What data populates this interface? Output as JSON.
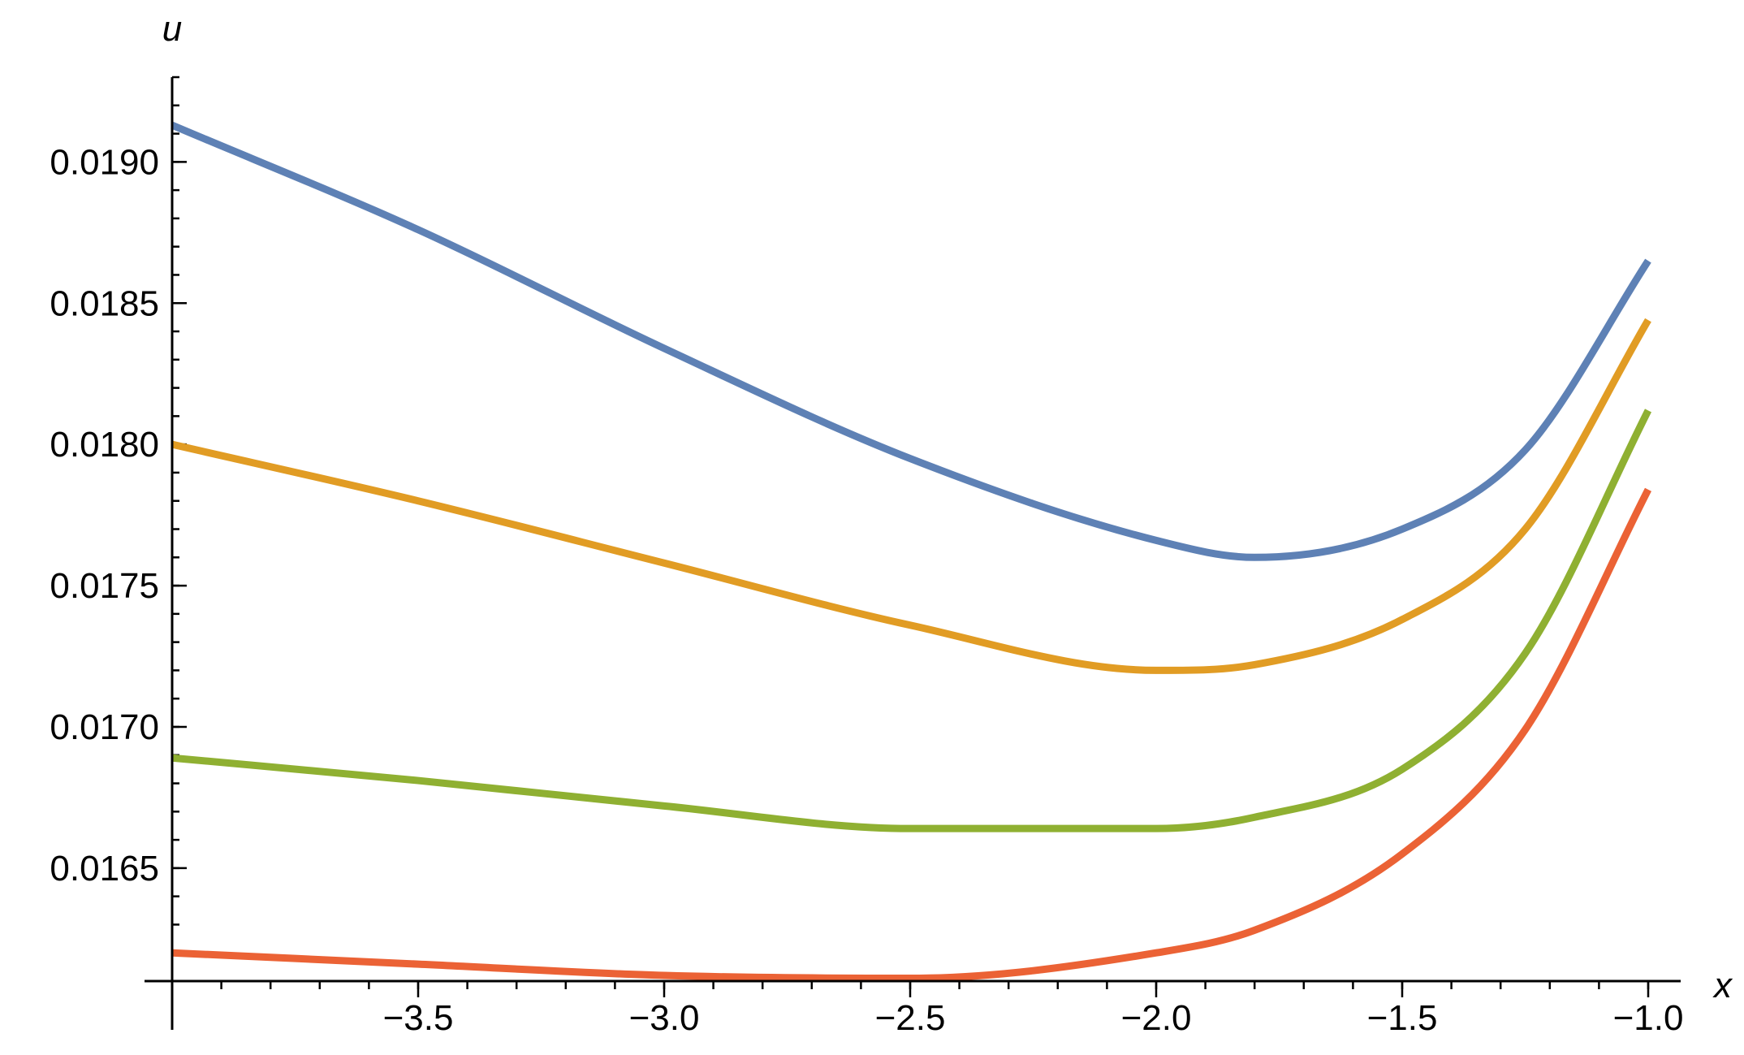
{
  "chart_data": {
    "type": "line",
    "title": "",
    "xlabel": "x",
    "ylabel": "u",
    "xlim": [
      -4.0,
      -1.0
    ],
    "ylim": [
      0.0161,
      0.0193
    ],
    "x_ticks": [
      {
        "value": -3.5,
        "label": "−3.5"
      },
      {
        "value": -3.0,
        "label": "−3.0"
      },
      {
        "value": -2.5,
        "label": "−2.5"
      },
      {
        "value": -2.0,
        "label": "−2.0"
      },
      {
        "value": -1.5,
        "label": "−1.5"
      },
      {
        "value": -1.0,
        "label": "−1.0"
      }
    ],
    "y_ticks": [
      {
        "value": 0.0165,
        "label": "0.0165"
      },
      {
        "value": 0.017,
        "label": "0.0170"
      },
      {
        "value": 0.0175,
        "label": "0.0175"
      },
      {
        "value": 0.018,
        "label": "0.0180"
      },
      {
        "value": 0.0185,
        "label": "0.0185"
      },
      {
        "value": 0.019,
        "label": "0.0190"
      }
    ],
    "grid": false,
    "legend": "none",
    "x": [
      -4.0,
      -3.5,
      -3.0,
      -2.5,
      -2.0,
      -1.8,
      -1.5,
      -1.25,
      -1.0
    ],
    "series": [
      {
        "color": "#5e81b5",
        "values": [
          0.01913,
          0.01876,
          0.01834,
          0.01795,
          0.01766,
          0.0176,
          0.0177,
          0.01798,
          0.01865
        ]
      },
      {
        "color": "#e19c24",
        "values": [
          0.018,
          0.0178,
          0.01758,
          0.01736,
          0.0172,
          0.01722,
          0.01738,
          0.0177,
          0.01844
        ]
      },
      {
        "color": "#8fb032",
        "values": [
          0.01689,
          0.01681,
          0.01672,
          0.01664,
          0.01664,
          0.01668,
          0.01685,
          0.01726,
          0.01812
        ]
      },
      {
        "color": "#eb6235",
        "values": [
          0.0162,
          0.01616,
          0.01612,
          0.01611,
          0.0162,
          0.01628,
          0.01655,
          0.01699,
          0.01784
        ]
      }
    ]
  }
}
